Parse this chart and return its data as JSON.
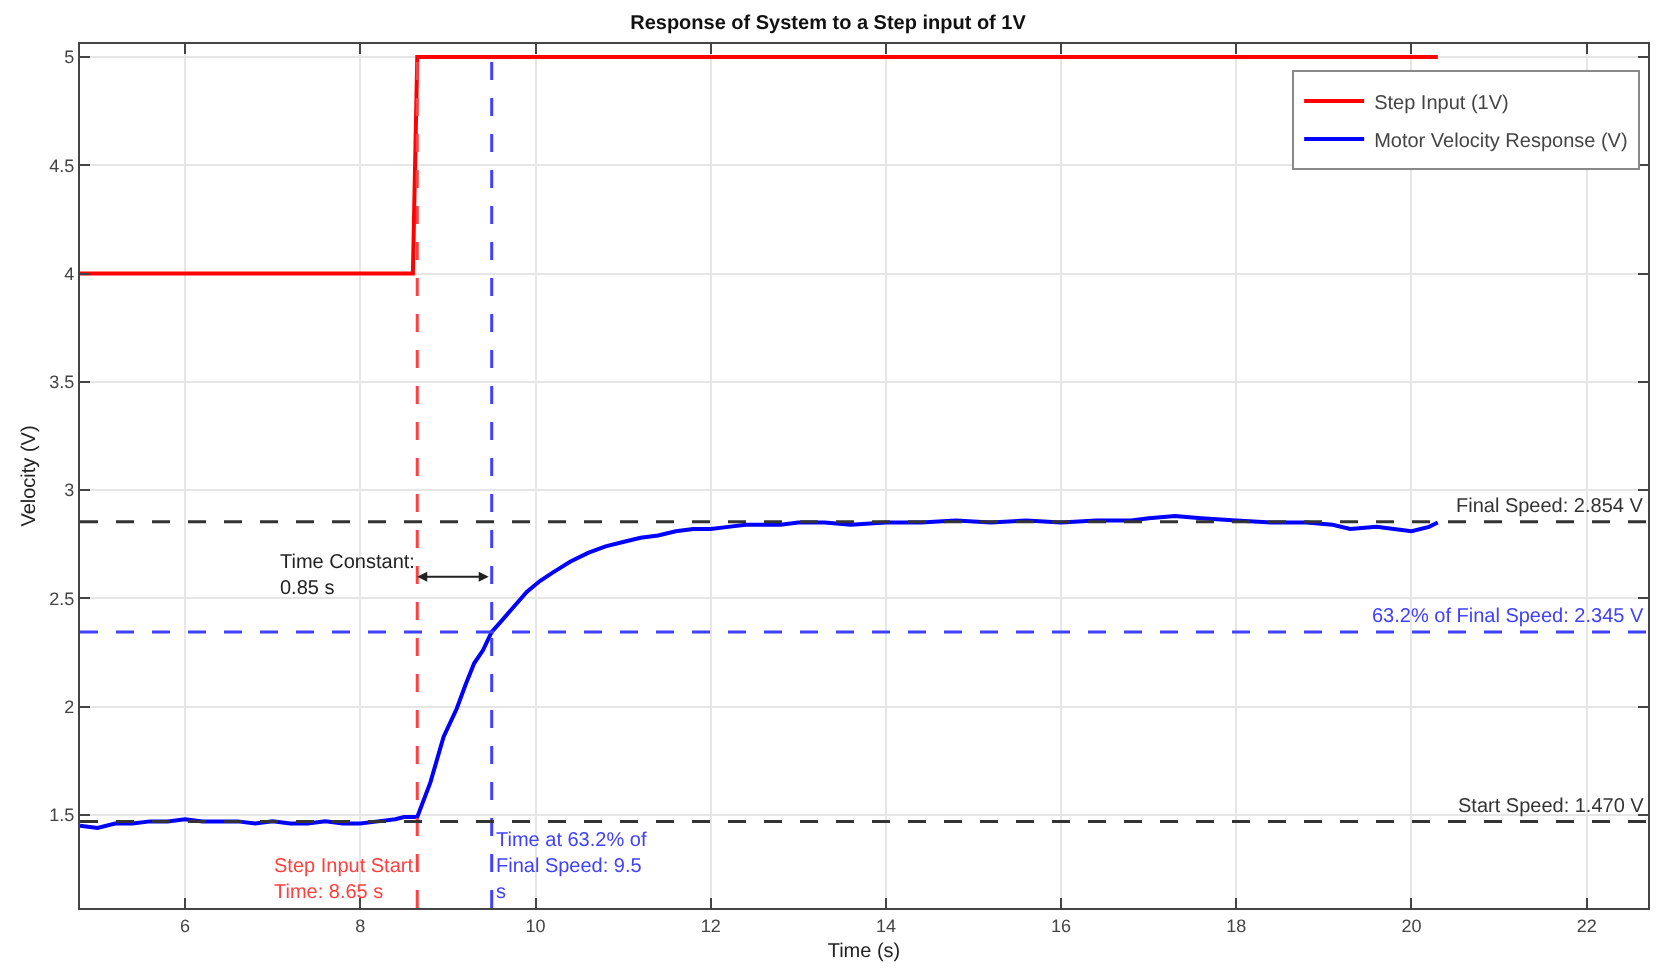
{
  "chart_data": {
    "type": "line",
    "title": "Response of System to a Step input of 1V",
    "xlabel": "Time (s)",
    "ylabel": "Velocity (V)",
    "xlim": [
      4.8,
      22.7
    ],
    "ylim": [
      1.07,
      5.06
    ],
    "xticks": [
      6,
      8,
      10,
      12,
      14,
      16,
      18,
      20,
      22
    ],
    "yticks": [
      1.5,
      2,
      2.5,
      3,
      3.5,
      4,
      4.5,
      5
    ],
    "grid": true,
    "legend": "top right",
    "line_style": "solid",
    "marker": "none",
    "series": [
      {
        "name": "Step Input (1V)",
        "color": "#ff0000",
        "x": [
          4.8,
          8.6,
          8.65,
          20.3
        ],
        "values": [
          4,
          4,
          5,
          5
        ]
      },
      {
        "name": "Motor Velocity Response (V)",
        "color": "#0000ff",
        "x": [
          4.8,
          5.0,
          5.2,
          5.4,
          5.6,
          5.8,
          6.0,
          6.2,
          6.4,
          6.6,
          6.8,
          7.0,
          7.2,
          7.4,
          7.6,
          7.8,
          8.0,
          8.2,
          8.4,
          8.5,
          8.65,
          8.8,
          8.95,
          9.1,
          9.2,
          9.3,
          9.4,
          9.5,
          9.6,
          9.75,
          9.9,
          10.05,
          10.2,
          10.4,
          10.6,
          10.8,
          11.0,
          11.2,
          11.4,
          11.6,
          11.8,
          12.0,
          12.2,
          12.4,
          12.6,
          12.8,
          13.0,
          13.3,
          13.6,
          14.0,
          14.4,
          14.8,
          15.2,
          15.6,
          16.0,
          16.4,
          16.8,
          17.0,
          17.3,
          17.6,
          18.0,
          18.4,
          18.8,
          19.1,
          19.3,
          19.6,
          19.8,
          20.0,
          20.2,
          20.3
        ],
        "values": [
          1.45,
          1.44,
          1.46,
          1.46,
          1.47,
          1.47,
          1.48,
          1.47,
          1.47,
          1.47,
          1.46,
          1.47,
          1.46,
          1.46,
          1.47,
          1.46,
          1.46,
          1.47,
          1.48,
          1.49,
          1.49,
          1.65,
          1.86,
          1.99,
          2.1,
          2.2,
          2.26,
          2.345,
          2.39,
          2.46,
          2.53,
          2.58,
          2.62,
          2.67,
          2.71,
          2.74,
          2.76,
          2.78,
          2.79,
          2.81,
          2.82,
          2.82,
          2.83,
          2.84,
          2.84,
          2.84,
          2.85,
          2.85,
          2.84,
          2.85,
          2.85,
          2.86,
          2.85,
          2.86,
          2.85,
          2.86,
          2.86,
          2.87,
          2.88,
          2.87,
          2.86,
          2.85,
          2.85,
          2.84,
          2.82,
          2.83,
          2.82,
          2.81,
          2.83,
          2.85
        ]
      }
    ],
    "ref_lines": [
      {
        "axis": "x",
        "value": 8.65,
        "label": "Step Input Start\nTime: 8.65 s",
        "color": "#ff4040",
        "line_style": "dashed"
      },
      {
        "axis": "x",
        "value": 9.5,
        "label": "Time at 63.2% of\nFinal Speed: 9.5\ns",
        "color": "#4040ff",
        "line_style": "dashed"
      },
      {
        "axis": "y",
        "value": 2.854,
        "label": "Final Speed: 2.854 V",
        "color": "#333333",
        "line_style": "dashed"
      },
      {
        "axis": "y",
        "value": 2.345,
        "label": "63.2% of Final Speed: 2.345 V",
        "color": "#4040ff",
        "line_style": "dashed"
      },
      {
        "axis": "y",
        "value": 1.47,
        "label": "Start Speed: 1.470 V",
        "color": "#333333",
        "line_style": "dashed"
      }
    ],
    "annotations": [
      {
        "text": "Time Constant:\n0.85 s",
        "x": 8.65,
        "y": 2.6
      }
    ]
  }
}
